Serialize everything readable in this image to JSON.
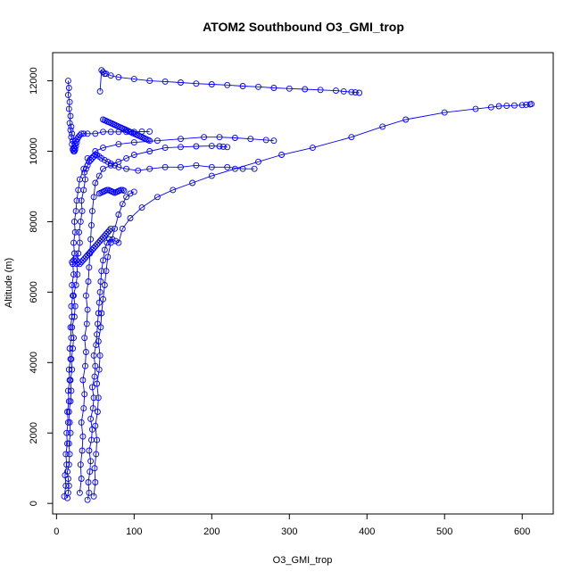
{
  "chart_data": {
    "type": "scatter",
    "title": "ATOM2 Southbound O3_GMI_trop",
    "xlabel": "O3_GMI_trop",
    "ylabel": "Altitude (m)",
    "xlim": [
      -5,
      640
    ],
    "ylim": [
      -300,
      12800
    ],
    "x_ticks": [
      0,
      100,
      200,
      300,
      400,
      500,
      600
    ],
    "y_ticks": [
      0,
      2000,
      4000,
      6000,
      8000,
      10000,
      12000
    ],
    "grid": false,
    "legend": "none",
    "color": "#0000ff",
    "series": [
      {
        "x": [
          14,
          15,
          16,
          15,
          14,
          16,
          17,
          16,
          18,
          17,
          16,
          18,
          19,
          18,
          20,
          19,
          21,
          22,
          20,
          23,
          24,
          22,
          25,
          27,
          26,
          28,
          30,
          29,
          31,
          33,
          32,
          35,
          37,
          36,
          38,
          40,
          42,
          44,
          46,
          48,
          50,
          52,
          55,
          58,
          62,
          66,
          70,
          75,
          80,
          90,
          105,
          120,
          140,
          160,
          180,
          200,
          220,
          240,
          255
        ],
        "y": [
          150,
          300,
          500,
          700,
          900,
          1100,
          1400,
          1700,
          2000,
          2300,
          2600,
          2900,
          3200,
          3500,
          3800,
          4100,
          4400,
          4700,
          5000,
          5300,
          5600,
          5900,
          6200,
          6500,
          6800,
          7100,
          7400,
          7700,
          8000,
          8300,
          8600,
          8900,
          9200,
          9400,
          9500,
          9600,
          9700,
          9750,
          9800,
          9850,
          9900,
          9900,
          9850,
          9800,
          9750,
          9700,
          9650,
          9600,
          9550,
          9500,
          9450,
          9500,
          9550,
          9550,
          9600,
          9550,
          9550,
          9500,
          9500
        ]
      },
      {
        "x": [
          40,
          42,
          41,
          43,
          44,
          42,
          45,
          46,
          44,
          47,
          48,
          46,
          49,
          50,
          48,
          51,
          52,
          53,
          54,
          55,
          56,
          57,
          58,
          60,
          62,
          65,
          68,
          72,
          76,
          80,
          85,
          95,
          110,
          130,
          150,
          175,
          200,
          230,
          260,
          290,
          330,
          380,
          420,
          450,
          500,
          540,
          560,
          570,
          580,
          590,
          600,
          605,
          610,
          612
        ],
        "y": [
          100,
          300,
          600,
          900,
          1200,
          1500,
          1800,
          2100,
          2400,
          2700,
          3000,
          3300,
          3600,
          3900,
          4200,
          4500,
          4800,
          5100,
          5400,
          5700,
          6000,
          6300,
          6600,
          6900,
          7200,
          7400,
          7500,
          7500,
          7450,
          7400,
          7800,
          8100,
          8400,
          8700,
          8900,
          9100,
          9300,
          9500,
          9700,
          9900,
          10100,
          10400,
          10700,
          10900,
          11100,
          11200,
          11250,
          11280,
          11290,
          11300,
          11310,
          11320,
          11330,
          11340
        ]
      },
      {
        "x": [
          48,
          50,
          49,
          51,
          52,
          50,
          53,
          54,
          52,
          55,
          56,
          54,
          57,
          58,
          60,
          62,
          64,
          66,
          70,
          75,
          80,
          85,
          90,
          95,
          100
        ],
        "y": [
          200,
          600,
          1000,
          1400,
          1800,
          2200,
          2600,
          3000,
          3400,
          3800,
          4200,
          4600,
          5000,
          5400,
          5800,
          6200,
          6600,
          7000,
          7400,
          7800,
          8200,
          8500,
          8700,
          8800,
          8850
        ]
      },
      {
        "x": [
          56,
          58,
          60,
          62,
          64,
          70,
          80,
          100,
          120,
          140,
          160,
          180,
          200,
          220,
          240,
          260,
          280,
          300,
          320,
          340,
          360,
          370,
          380,
          385,
          390
        ],
        "y": [
          11700,
          12300,
          12250,
          12200,
          12200,
          12150,
          12100,
          12050,
          12000,
          11980,
          11950,
          11920,
          11900,
          11880,
          11850,
          11830,
          11800,
          11780,
          11760,
          11740,
          11720,
          11700,
          11680,
          11670,
          11660
        ]
      },
      {
        "x": [
          15,
          16,
          15,
          17,
          16,
          18,
          17,
          19,
          18,
          20,
          19,
          21,
          20,
          22,
          21,
          23,
          22,
          24,
          23,
          25,
          24,
          26,
          25,
          27,
          28,
          30,
          32,
          35,
          40,
          50,
          60,
          70,
          80,
          90,
          100,
          110,
          120
        ],
        "y": [
          12000,
          11800,
          11600,
          11400,
          11200,
          11000,
          10800,
          10700,
          10600,
          10500,
          10400,
          10300,
          10200,
          10100,
          10050,
          10000,
          10000,
          10050,
          10100,
          10150,
          10200,
          10250,
          10300,
          10350,
          10400,
          10450,
          10500,
          10500,
          10500,
          10500,
          10550,
          10550,
          10550,
          10550,
          10550,
          10560,
          10560
        ]
      },
      {
        "x": [
          10,
          12,
          11,
          13,
          12,
          14,
          13,
          15,
          14,
          16,
          15,
          17,
          16,
          18,
          17,
          19,
          18,
          20,
          19,
          21,
          20,
          22,
          21,
          23,
          22,
          24,
          23,
          25,
          26,
          28,
          30,
          35,
          40,
          50,
          60,
          80,
          100,
          130,
          160,
          190,
          210,
          230,
          250,
          270,
          280
        ],
        "y": [
          200,
          500,
          800,
          1100,
          1400,
          1700,
          2000,
          2300,
          2600,
          2900,
          3200,
          3500,
          3800,
          4100,
          4400,
          4700,
          5000,
          5300,
          5600,
          5900,
          6200,
          6500,
          6800,
          7100,
          7400,
          7700,
          8000,
          8300,
          8600,
          8900,
          9200,
          9500,
          9800,
          10000,
          10100,
          10200,
          10250,
          10300,
          10350,
          10400,
          10400,
          10380,
          10350,
          10320,
          10300
        ]
      },
      {
        "x": [
          30,
          32,
          31,
          33,
          34,
          32,
          35,
          36,
          34,
          37,
          38,
          36,
          39,
          40,
          38,
          41,
          42,
          43,
          44,
          45,
          46,
          48,
          50,
          55,
          60,
          70,
          80,
          90,
          100,
          120,
          140,
          160,
          180,
          200,
          210,
          215,
          220
        ],
        "y": [
          300,
          700,
          1100,
          1500,
          1900,
          2300,
          2700,
          3100,
          3500,
          3900,
          4300,
          4700,
          5100,
          5500,
          5900,
          6300,
          6700,
          7100,
          7500,
          7900,
          8300,
          8700,
          9100,
          9300,
          9500,
          9600,
          9700,
          9800,
          9900,
          10000,
          10100,
          10120,
          10140,
          10150,
          10140,
          10130,
          10120
        ]
      },
      {
        "x": [
          20,
          22,
          24,
          26,
          28,
          30,
          32,
          34,
          36,
          38,
          40,
          42,
          44,
          46,
          48,
          50,
          52,
          54,
          56,
          58,
          60,
          62,
          64,
          66,
          68,
          70
        ],
        "y": [
          6850,
          6900,
          6950,
          6900,
          6850,
          6800,
          6850,
          6900,
          6950,
          7000,
          7050,
          7100,
          7150,
          7200,
          7250,
          7300,
          7350,
          7400,
          7450,
          7500,
          7550,
          7600,
          7650,
          7700,
          7750,
          7800
        ]
      },
      {
        "x": [
          55,
          57,
          59,
          61,
          63,
          65,
          67,
          69,
          71,
          73,
          75,
          77,
          79,
          81,
          83,
          85,
          87
        ],
        "y": [
          8800,
          8820,
          8840,
          8860,
          8880,
          8900,
          8900,
          8880,
          8860,
          8840,
          8820,
          8840,
          8860,
          8880,
          8900,
          8900,
          8880
        ]
      },
      {
        "x": [
          60,
          62,
          64,
          66,
          68,
          70,
          72,
          74,
          76,
          78,
          80,
          82,
          84,
          86,
          88,
          90,
          92,
          94,
          96,
          98,
          100,
          102,
          104,
          106,
          108,
          110,
          112,
          114,
          116,
          118,
          120
        ],
        "y": [
          10900,
          10880,
          10860,
          10840,
          10820,
          10800,
          10780,
          10760,
          10740,
          10720,
          10700,
          10680,
          10660,
          10640,
          10620,
          10600,
          10580,
          10560,
          10540,
          10520,
          10500,
          10480,
          10460,
          10440,
          10420,
          10400,
          10380,
          10360,
          10340,
          10320,
          10300
        ]
      }
    ]
  }
}
